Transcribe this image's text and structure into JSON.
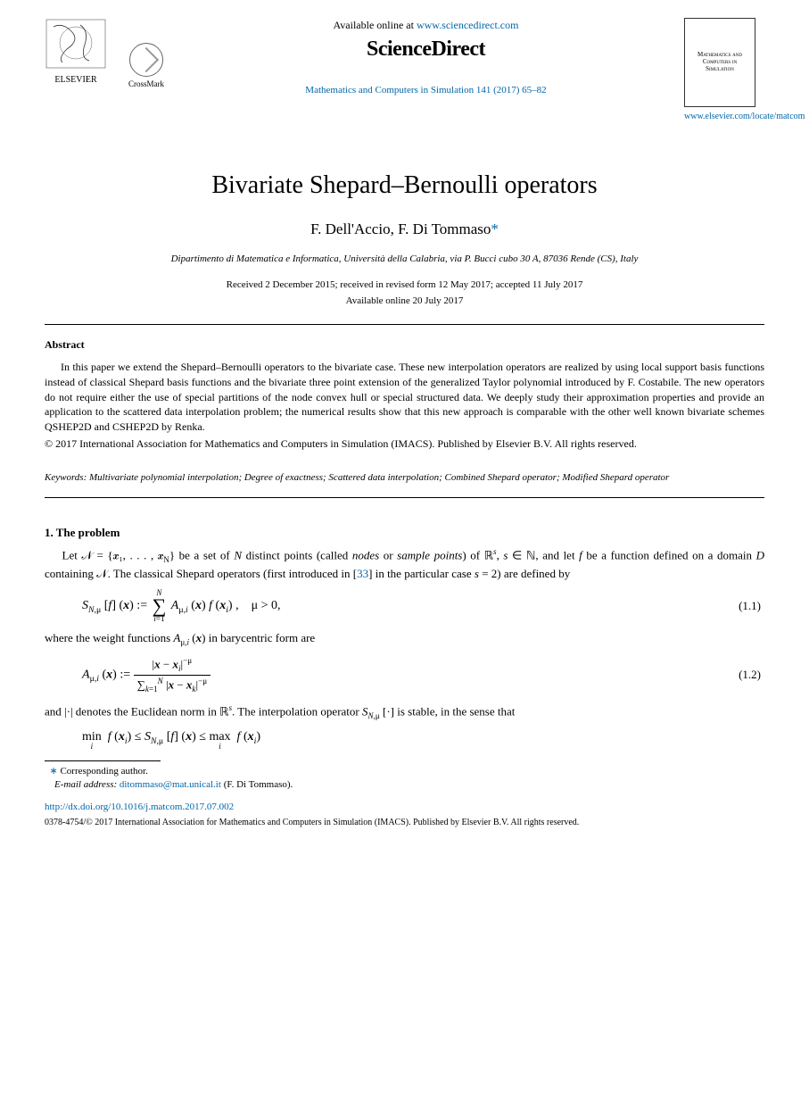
{
  "header": {
    "publisher_logo": "ELSEVIER",
    "crossmark_label": "CrossMark",
    "available_online_prefix": "Available online at ",
    "available_online_url": "www.sciencedirect.com",
    "sciencedirect_brand": "ScienceDirect",
    "journal_ref_text": "Mathematics and Computers in Simulation 141 (2017) 65–82",
    "journal_cover_text": "Mathematics and Computers in Simulation",
    "journal_locate_url": "www.elsevier.com/locate/matcom",
    "link_color": "#0066aa"
  },
  "article": {
    "title": "Bivariate Shepard–Bernoulli operators",
    "authors_html": "F. Dell'Accio, F. Di Tommaso",
    "corr_marker": "*",
    "affiliation": "Dipartimento di Matematica e Informatica, Università della Calabria, via P. Bucci cubo 30 A, 87036 Rende (CS), Italy",
    "history_line1": "Received 2 December 2015; received in revised form 12 May 2017; accepted 11 July 2017",
    "history_line2": "Available online 20 July 2017"
  },
  "abstract": {
    "heading": "Abstract",
    "text": "In this paper we extend the Shepard–Bernoulli operators to the bivariate case. These new interpolation operators are realized by using local support basis functions instead of classical Shepard basis functions and the bivariate three point extension of the generalized Taylor polynomial introduced by F. Costabile. The new operators do not require either the use of special partitions of the node convex hull or special structured data. We deeply study their approximation properties and provide an application to the scattered data interpolation problem; the numerical results show that this new approach is comparable with the other well known bivariate schemes QSHEP2D and CSHEP2D by Renka.",
    "copyright": "© 2017 International Association for Mathematics and Computers in Simulation (IMACS). Published by Elsevier B.V. All rights reserved."
  },
  "keywords": {
    "label": "Keywords:",
    "text": " Multivariate polynomial interpolation; Degree of exactness; Scattered data interpolation; Combined Shepard operator; Modified Shepard operator"
  },
  "section1": {
    "heading": "1.  The problem",
    "para1_html": "Let 𝒩 = {𝒙₁, . . . , 𝒙<sub>N</sub>} be a set of <i>N</i> distinct points (called <i>nodes</i> or <i>sample points</i>) of ℝ<sup><i>s</i></sup>, <i>s</i> ∈ ℕ, and let <i>f</i> be a function defined on a domain <i>D</i> containing 𝒩. The classical Shepard operators (first introduced in [<a href=\"#\" data-name=\"ref-33-link\" data-interactable=\"true\">33</a>] in the particular case <i>s</i> = 2) are defined by",
    "eq1_num": "(1.1)",
    "para2": "where the weight functions Aμ,i (𝒙) in barycentric form are",
    "eq2_num": "(1.2)",
    "para3_html": "and |·| denotes the Euclidean norm in ℝ<sup><i>s</i></sup>. The interpolation operator <i>S</i><sub><i>N</i>,μ</sub> [·] is stable, in the sense that"
  },
  "footnotes": {
    "corr_label": "Corresponding author.",
    "email_label": "E-mail address:",
    "email": "ditommaso@mat.unical.it",
    "email_who": " (F. Di Tommaso)."
  },
  "footer": {
    "doi": "http://dx.doi.org/10.1016/j.matcom.2017.07.002",
    "issn_line": "0378-4754/© 2017 International Association for Mathematics and Computers in Simulation (IMACS). Published by Elsevier B.V. All rights reserved."
  },
  "colors": {
    "text": "#000000",
    "link": "#0066aa",
    "background": "#ffffff",
    "rule": "#000000"
  },
  "typography": {
    "body_fontsize_pt": 10,
    "title_fontsize_pt": 22,
    "authors_fontsize_pt": 13,
    "abstract_fontsize_pt": 9,
    "footnote_fontsize_pt": 8,
    "font_family": "Times New Roman"
  }
}
